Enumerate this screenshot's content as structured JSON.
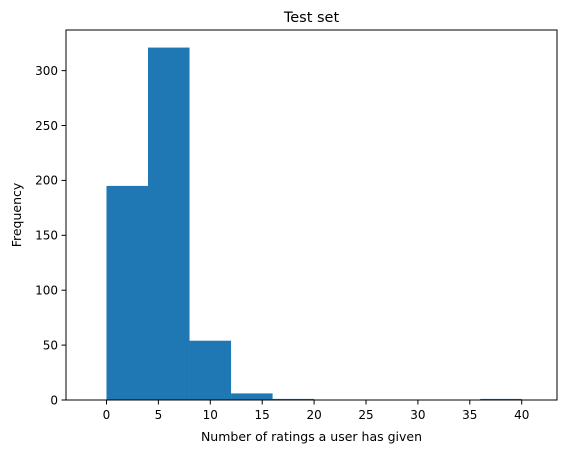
{
  "chart_data": {
    "type": "bar",
    "title": "Test set",
    "xlabel": "Number of ratings a user has given",
    "ylabel": "Frequency",
    "xlim": [
      -3.9,
      43.4
    ],
    "ylim": [
      0,
      337
    ],
    "xticks": [
      0,
      5,
      10,
      15,
      20,
      25,
      30,
      35,
      40
    ],
    "yticks": [
      0,
      50,
      100,
      150,
      200,
      250,
      300
    ],
    "grid": false,
    "legend": "none",
    "color": "#1f77b4",
    "bins": [
      {
        "x0": 0,
        "x1": 4,
        "value": 195
      },
      {
        "x0": 4,
        "x1": 8,
        "value": 321
      },
      {
        "x0": 8,
        "x1": 12,
        "value": 54
      },
      {
        "x0": 12,
        "x1": 16,
        "value": 6
      },
      {
        "x0": 16,
        "x1": 20,
        "value": 1
      },
      {
        "x0": 20,
        "x1": 24,
        "value": 0
      },
      {
        "x0": 24,
        "x1": 28,
        "value": 0
      },
      {
        "x0": 28,
        "x1": 32,
        "value": 0
      },
      {
        "x0": 32,
        "x1": 36,
        "value": 0
      },
      {
        "x0": 36,
        "x1": 40,
        "value": 1
      }
    ]
  }
}
